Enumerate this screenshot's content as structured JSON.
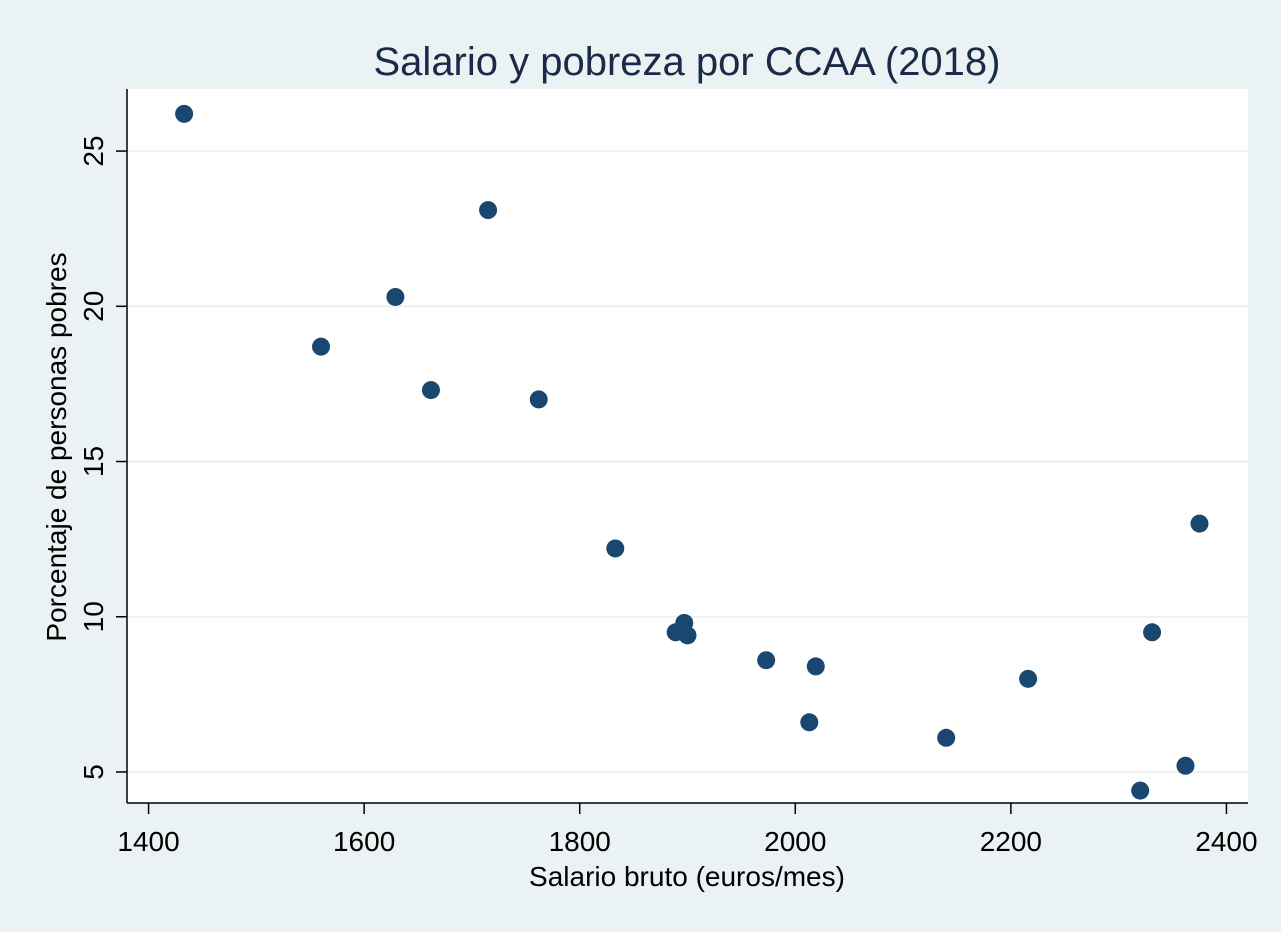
{
  "chart_data": {
    "type": "scatter",
    "title": "Salario y pobreza por CCAA (2018)",
    "xlabel": "Salario bruto (euros/mes)",
    "ylabel": "Porcentaje de personas pobres",
    "xlim": [
      1380,
      2420
    ],
    "ylim": [
      4.0,
      27.0
    ],
    "xticks": [
      1400,
      1600,
      1800,
      2000,
      2200,
      2400
    ],
    "yticks": [
      5,
      10,
      15,
      20,
      25
    ],
    "grid": "horizontal",
    "background_color": "#eaf2f3",
    "plot_color": "#ffffff",
    "marker_color": "#1a476f",
    "title_color": "#1a2b47",
    "points": [
      {
        "x": 1433,
        "y": 26.2
      },
      {
        "x": 1715,
        "y": 23.1
      },
      {
        "x": 1629,
        "y": 20.3
      },
      {
        "x": 1560,
        "y": 18.7
      },
      {
        "x": 1662,
        "y": 17.3
      },
      {
        "x": 1762,
        "y": 17.0
      },
      {
        "x": 1833,
        "y": 12.2
      },
      {
        "x": 1897,
        "y": 9.8
      },
      {
        "x": 1889,
        "y": 9.5
      },
      {
        "x": 1900,
        "y": 9.4
      },
      {
        "x": 1973,
        "y": 8.6
      },
      {
        "x": 2019,
        "y": 8.4
      },
      {
        "x": 2013,
        "y": 6.6
      },
      {
        "x": 2140,
        "y": 6.1
      },
      {
        "x": 2216,
        "y": 8.0
      },
      {
        "x": 2331,
        "y": 9.5
      },
      {
        "x": 2375,
        "y": 13.0
      },
      {
        "x": 2362,
        "y": 5.2
      },
      {
        "x": 2320,
        "y": 4.4
      }
    ]
  }
}
